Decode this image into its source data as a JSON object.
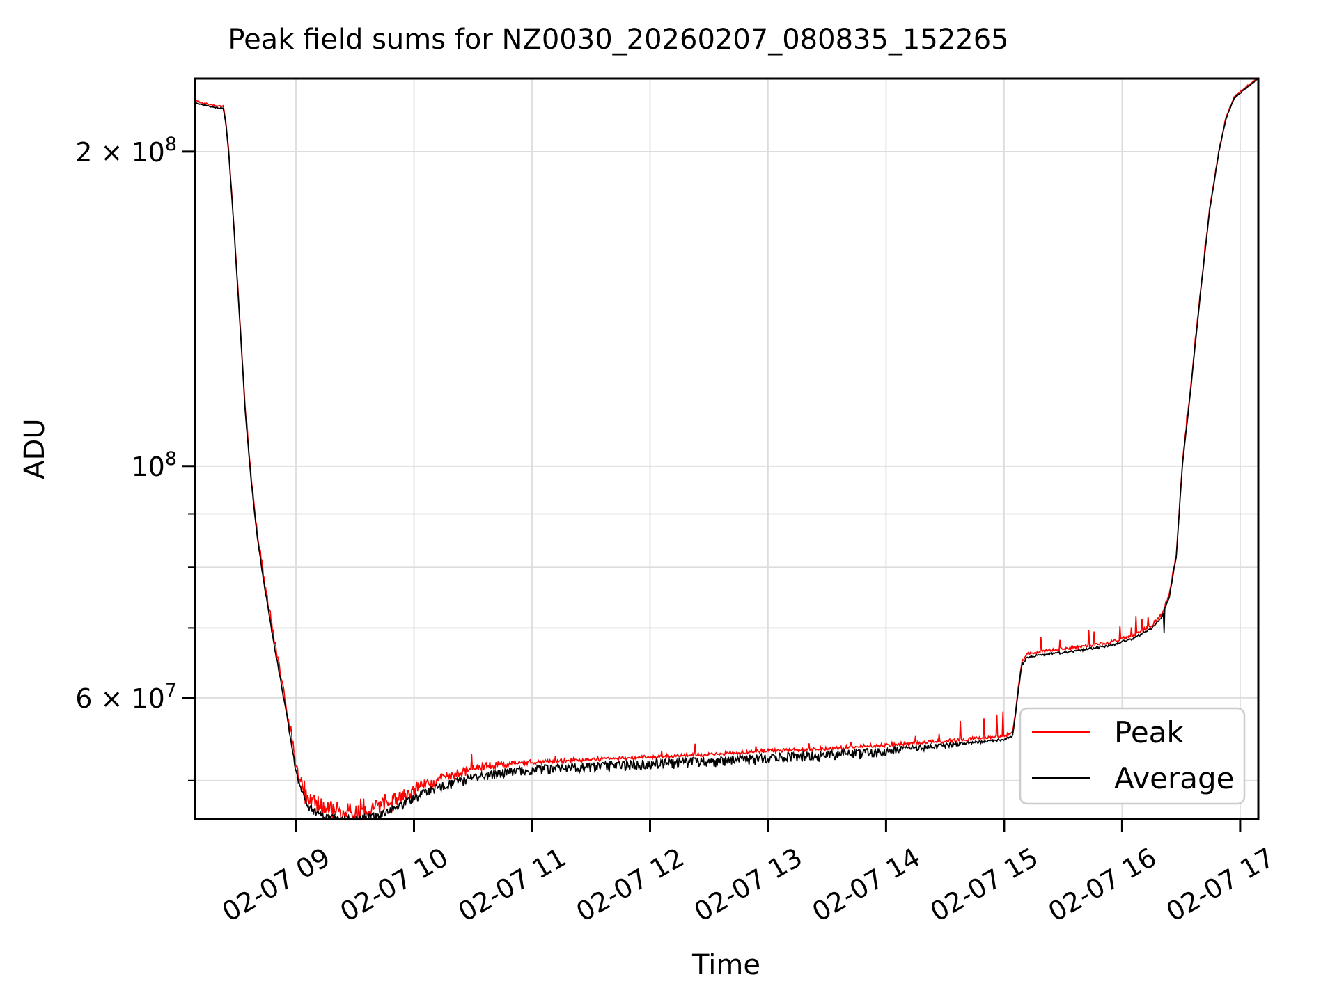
{
  "chart_data": {
    "type": "line",
    "title": "Peak field sums for NZ0030_20260207_080835_152265",
    "xlabel": "Time",
    "ylabel": "ADU",
    "yscale": "log",
    "grid": true,
    "legend_position": "lower right",
    "xlim": [
      8.1445,
      17.154
    ],
    "ylim": [
      45940000,
      234900000
    ],
    "x_ticks": [
      {
        "t": 9,
        "label": "02-07 09"
      },
      {
        "t": 10,
        "label": "02-07 10"
      },
      {
        "t": 11,
        "label": "02-07 11"
      },
      {
        "t": 12,
        "label": "02-07 12"
      },
      {
        "t": 13,
        "label": "02-07 13"
      },
      {
        "t": 14,
        "label": "02-07 14"
      },
      {
        "t": 15,
        "label": "02-07 15"
      },
      {
        "t": 16,
        "label": "02-07 16"
      },
      {
        "t": 17,
        "label": "02-07 17"
      }
    ],
    "y_ticks_major": [
      {
        "v": 200000000,
        "label": "2 × 10^8"
      },
      {
        "v": 100000000,
        "label": "10^8"
      },
      {
        "v": 60000000,
        "label": "6 × 10^7"
      }
    ],
    "y_ticks_minor": [
      50000000,
      70000000,
      80000000,
      90000000
    ],
    "y_gridlines": [
      50000000,
      60000000,
      70000000,
      80000000,
      90000000,
      100000000,
      200000000
    ],
    "grid_color": "#dcdcdc",
    "axis_color": "#000000",
    "seed": 42,
    "base_anchors": [
      [
        8.1445,
        223000000.0
      ],
      [
        8.2,
        221800000.0
      ],
      [
        8.3,
        220700000.0
      ],
      [
        8.385,
        220000000.0
      ],
      [
        8.405,
        213000000.0
      ],
      [
        8.43,
        200000000.0
      ],
      [
        8.47,
        172000000.0
      ],
      [
        8.52,
        140000000.0
      ],
      [
        8.57,
        113000000.0
      ],
      [
        8.62,
        97000000.0
      ],
      [
        8.67,
        86000000.0
      ],
      [
        8.72,
        78500000.0
      ],
      [
        8.77,
        72500000.0
      ],
      [
        8.82,
        67000000.0
      ],
      [
        8.87,
        62500000.0
      ],
      [
        8.92,
        58000000.0
      ],
      [
        8.97,
        53500000.0
      ],
      [
        9.02,
        50000000.0
      ],
      [
        9.1,
        47500000.0
      ],
      [
        9.2,
        46600000.0
      ],
      [
        9.35,
        46200000.0
      ],
      [
        9.55,
        46200000.0
      ],
      [
        9.7,
        46600000.0
      ],
      [
        9.85,
        47400000.0
      ],
      [
        10.0,
        48500000.0
      ],
      [
        10.15,
        49400000.0
      ],
      [
        10.3,
        50000000.0
      ],
      [
        10.5,
        50700000.0
      ],
      [
        10.7,
        51200000.0
      ],
      [
        10.9,
        51500000.0
      ],
      [
        11.1,
        51700000.0
      ],
      [
        11.5,
        52000000.0
      ],
      [
        12.0,
        52300000.0
      ],
      [
        12.5,
        52600000.0
      ],
      [
        13.0,
        53000000.0
      ],
      [
        13.5,
        53300000.0
      ],
      [
        14.0,
        53700000.0
      ],
      [
        14.4,
        54100000.0
      ],
      [
        14.75,
        54500000.0
      ],
      [
        15.0,
        54800000.0
      ],
      [
        15.07,
        55200000.0
      ],
      [
        15.09,
        57000000.0
      ],
      [
        15.12,
        61000000.0
      ],
      [
        15.15,
        64500000.0
      ],
      [
        15.19,
        65600000.0
      ],
      [
        15.3,
        66000000.0
      ],
      [
        15.6,
        66600000.0
      ],
      [
        15.9,
        67400000.0
      ],
      [
        16.1,
        68500000.0
      ],
      [
        16.25,
        70000000.0
      ],
      [
        16.33,
        71500000.0
      ],
      [
        16.4,
        75000000.0
      ],
      [
        16.46,
        82000000.0
      ],
      [
        16.51,
        100000000.0
      ],
      [
        16.58,
        118000000.0
      ],
      [
        16.66,
        145000000.0
      ],
      [
        16.74,
        175000000.0
      ],
      [
        16.82,
        200000000.0
      ],
      [
        16.88,
        215000000.0
      ],
      [
        16.95,
        225000000.0
      ],
      [
        17.05,
        230000000.0
      ],
      [
        17.154,
        234900000.0
      ]
    ],
    "series": [
      {
        "name": "Peak",
        "color": "#ff0000",
        "offset": [
          [
            8.1445,
            1.004
          ],
          [
            8.4,
            1.003
          ],
          [
            8.9,
            1.006
          ],
          [
            9.2,
            1.01
          ],
          [
            9.6,
            1.012
          ],
          [
            10.0,
            1.012
          ],
          [
            10.7,
            1.009
          ],
          [
            11.2,
            1.007
          ],
          [
            12.0,
            1.006
          ],
          [
            13.0,
            1.006
          ],
          [
            14.0,
            1.005
          ],
          [
            14.6,
            1.004
          ],
          [
            15.25,
            1.005
          ],
          [
            16.3,
            1.004
          ],
          [
            16.5,
            1.003
          ],
          [
            17.154,
            1.002
          ]
        ],
        "noise": [
          [
            8.1445,
            0.001,
            0.002
          ],
          [
            8.4,
            0.001,
            0.003
          ],
          [
            8.6,
            0.002,
            0.012
          ],
          [
            8.9,
            0.008,
            0.025
          ],
          [
            9.05,
            0.028,
            0.03
          ],
          [
            9.3,
            0.032,
            0.032
          ],
          [
            9.7,
            0.028,
            0.028
          ],
          [
            10.0,
            0.018,
            0.02
          ],
          [
            10.5,
            0.01,
            0.013
          ],
          [
            11.0,
            0.005,
            0.007
          ],
          [
            12.0,
            0.004,
            0.006
          ],
          [
            13.5,
            0.004,
            0.006
          ],
          [
            14.5,
            0.002,
            0.007
          ],
          [
            15.05,
            0.0015,
            0.005
          ],
          [
            15.6,
            0.0015,
            0.006
          ],
          [
            16.3,
            0.002,
            0.006
          ],
          [
            16.55,
            0.003,
            0.009
          ],
          [
            16.9,
            0.001,
            0.003
          ],
          [
            17.154,
            0.001,
            0.002
          ]
        ],
        "spikes": [
          [
            10.49,
            1.035
          ],
          [
            11.2,
            1.012
          ],
          [
            12.1,
            1.012
          ],
          [
            12.38,
            1.022
          ],
          [
            12.9,
            1.012
          ],
          [
            13.35,
            1.014
          ],
          [
            13.7,
            1.012
          ],
          [
            14.25,
            1.018
          ],
          [
            14.45,
            1.02
          ],
          [
            14.63,
            1.045
          ],
          [
            14.83,
            1.045
          ],
          [
            14.94,
            1.05
          ],
          [
            14.99,
            1.055
          ],
          [
            15.31,
            1.03
          ],
          [
            15.47,
            1.022
          ],
          [
            15.72,
            1.035
          ],
          [
            15.76,
            1.028
          ],
          [
            15.98,
            1.032
          ],
          [
            16.08,
            1.022
          ],
          [
            16.12,
            1.042
          ],
          [
            16.17,
            1.028
          ],
          [
            16.22,
            1.022
          ],
          [
            16.55,
            1.018
          ],
          [
            16.62,
            1.012
          ],
          [
            16.7,
            1.008
          ]
        ]
      },
      {
        "name": "Average",
        "color": "#000000",
        "offset": [
          [
            8.1445,
            1.0
          ],
          [
            17.154,
            1.0
          ]
        ],
        "noise": [
          [
            8.1445,
            0.0015,
            0.001
          ],
          [
            8.4,
            0.002,
            0.001
          ],
          [
            8.6,
            0.003,
            0.001
          ],
          [
            8.95,
            0.007,
            0.002
          ],
          [
            9.05,
            0.014,
            0.003
          ],
          [
            9.2,
            0.017,
            0.003
          ],
          [
            9.6,
            0.017,
            0.003
          ],
          [
            10.0,
            0.019,
            0.002
          ],
          [
            10.6,
            0.021,
            0.002
          ],
          [
            11.5,
            0.021,
            0.002
          ],
          [
            12.5,
            0.022,
            0.002
          ],
          [
            13.0,
            0.023,
            0.002
          ],
          [
            13.8,
            0.021,
            0.002
          ],
          [
            14.3,
            0.014,
            0.002
          ],
          [
            14.7,
            0.006,
            0.0015
          ],
          [
            15.05,
            0.004,
            0.0015
          ],
          [
            15.6,
            0.004,
            0.0015
          ],
          [
            16.1,
            0.004,
            0.002
          ],
          [
            16.45,
            0.003,
            0.003
          ],
          [
            16.9,
            0.002,
            0.002
          ],
          [
            17.154,
            0.0015,
            0.0015
          ]
        ],
        "spikes": [
          [
            16.355,
            0.952
          ]
        ]
      }
    ]
  }
}
